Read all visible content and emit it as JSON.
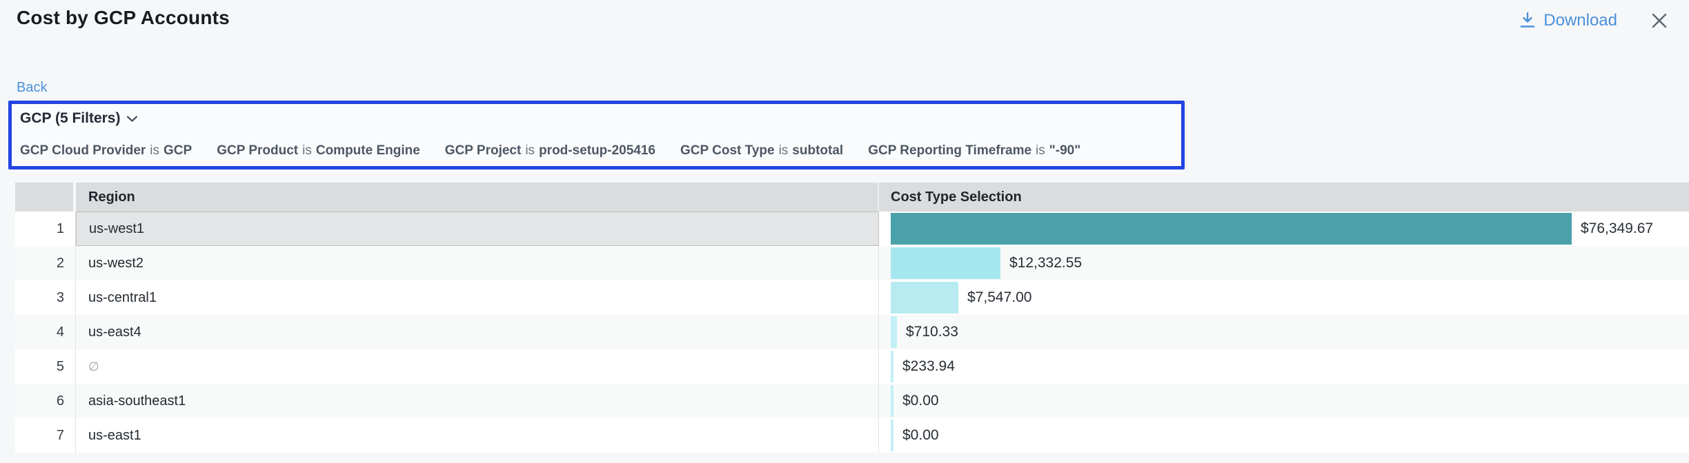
{
  "header": {
    "title": "Cost by GCP Accounts",
    "download_label": "Download"
  },
  "nav": {
    "back_label": "Back"
  },
  "filters": {
    "summary": "GCP (5 Filters)",
    "items": [
      {
        "field": "GCP Cloud Provider",
        "op": "is",
        "value": "GCP"
      },
      {
        "field": "GCP Product",
        "op": "is",
        "value": "Compute Engine"
      },
      {
        "field": "GCP Project",
        "op": "is",
        "value": "prod-setup-205416"
      },
      {
        "field": "GCP Cost Type",
        "op": "is",
        "value": "subtotal"
      },
      {
        "field": "GCP Reporting Timeframe",
        "op": "is",
        "value": "\"-90\""
      }
    ]
  },
  "table": {
    "columns": [
      "Region",
      "Cost Type Selection"
    ],
    "rows": [
      {
        "index": 1,
        "region": "us-west1",
        "muted": false,
        "selected": true,
        "value": 76349.67,
        "display": "$76,349.67",
        "bar_color": "#4ba1a9"
      },
      {
        "index": 2,
        "region": "us-west2",
        "muted": false,
        "selected": false,
        "value": 12332.55,
        "display": "$12,332.55",
        "bar_color": "#a6e7ef"
      },
      {
        "index": 3,
        "region": "us-central1",
        "muted": false,
        "selected": false,
        "value": 7547.0,
        "display": "$7,547.00",
        "bar_color": "#b8ebf1"
      },
      {
        "index": 4,
        "region": "us-east4",
        "muted": false,
        "selected": false,
        "value": 710.33,
        "display": "$710.33",
        "bar_color": "#c3f0f6"
      },
      {
        "index": 5,
        "region": "∅",
        "muted": true,
        "selected": false,
        "value": 233.94,
        "display": "$233.94",
        "bar_color": "#c3f0f6"
      },
      {
        "index": 6,
        "region": "asia-southeast1",
        "muted": false,
        "selected": false,
        "value": 0.0,
        "display": "$0.00",
        "bar_color": "#c3f0f6"
      },
      {
        "index": 7,
        "region": "us-east1",
        "muted": false,
        "selected": false,
        "value": 0.0,
        "display": "$0.00",
        "bar_color": "#c3f0f6"
      }
    ]
  },
  "chart_data": {
    "type": "bar",
    "orientation": "horizontal",
    "categories": [
      "us-west1",
      "us-west2",
      "us-central1",
      "us-east4",
      "∅",
      "asia-southeast1",
      "us-east1"
    ],
    "values": [
      76349.67,
      12332.55,
      7547.0,
      710.33,
      233.94,
      0.0,
      0.0
    ],
    "value_labels": [
      "$76,349.67",
      "$12,332.55",
      "$7,547.00",
      "$710.33",
      "$233.94",
      "$0.00",
      "$0.00"
    ],
    "title": "Cost by GCP Accounts",
    "xlabel": "Cost Type Selection",
    "ylabel": "Region",
    "xlim": [
      0,
      76349.67
    ]
  },
  "colors": {
    "accent_blue": "#2245e1",
    "link_blue": "#4b90d9",
    "bar_max": "#4ba1a9",
    "bar_light": "#a6e7ef",
    "bar_lighter": "#b8ebf1",
    "bar_sliver": "#c3f0f6",
    "header_bg": "#dbdcdd",
    "selected_cell": "#e4e5e6",
    "page_bg": "#f6f7f9"
  }
}
